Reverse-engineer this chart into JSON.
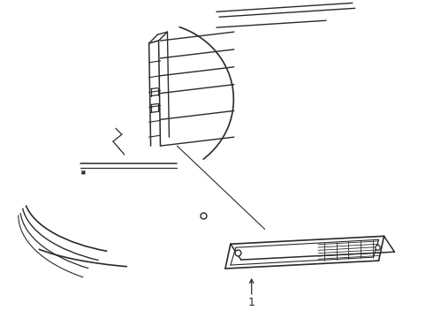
{
  "bg_color": "#ffffff",
  "line_color": "#2a2a2a",
  "lw": 1.0,
  "part_label": "1",
  "fig_width": 4.9,
  "fig_height": 3.6,
  "dpi": 100
}
